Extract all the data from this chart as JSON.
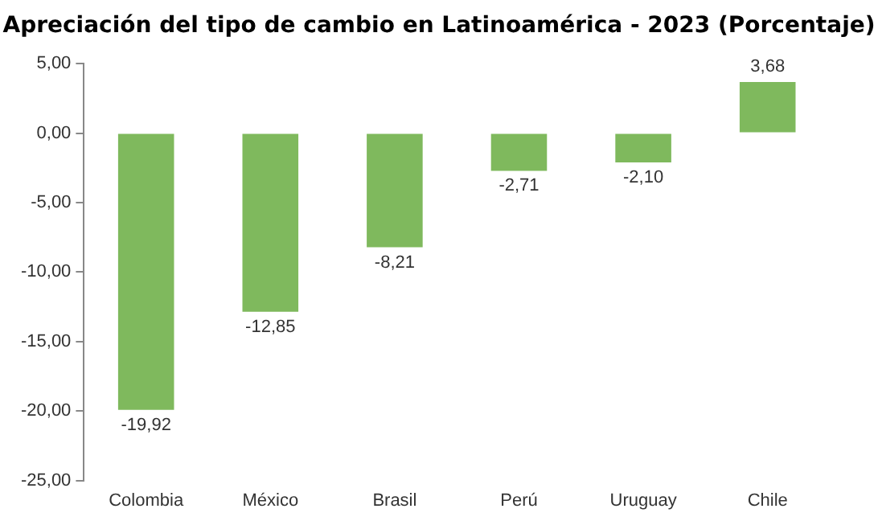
{
  "chart_data": {
    "type": "bar",
    "title": "Apreciación del tipo de cambio en Latinoamérica - 2023 (Porcentaje)",
    "categories": [
      "Colombia",
      "México",
      "Brasil",
      "Perú",
      "Uruguay",
      "Chile"
    ],
    "values": [
      -19.92,
      -12.85,
      -8.21,
      -2.71,
      -2.1,
      3.68
    ],
    "value_labels": [
      "-19,92",
      "-12,85",
      "-8,21",
      "-2,71",
      "-2,10",
      "3,68"
    ],
    "color": "#7fb95d",
    "ylim": [
      -25,
      5
    ],
    "yticks": [
      {
        "value": 5,
        "label": "5,00"
      },
      {
        "value": 0,
        "label": "0,00"
      },
      {
        "value": -5,
        "label": "-5,00"
      },
      {
        "value": -10,
        "label": "-10,00"
      },
      {
        "value": -15,
        "label": "-15,00"
      },
      {
        "value": -20,
        "label": "-20,00"
      },
      {
        "value": -25,
        "label": "-25,00"
      }
    ],
    "grid": false,
    "legend": false
  }
}
